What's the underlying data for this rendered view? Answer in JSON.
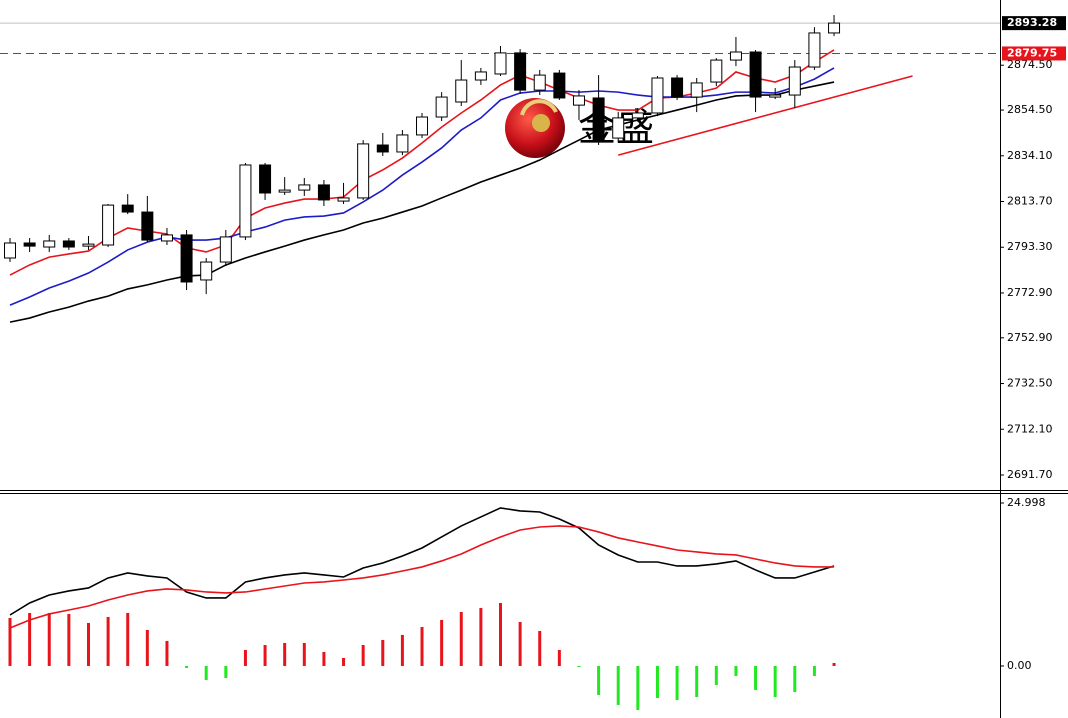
{
  "chart_data": [
    {
      "type": "candlestick",
      "open": [
        2788.5,
        2795.2,
        2793.4,
        2796.1,
        2793.8,
        2794.3,
        2812.1,
        2809.0,
        2796.1,
        2798.8,
        2778.7,
        2786.7,
        2797.9,
        2830.0,
        2817.9,
        2818.8,
        2821.1,
        2813.9,
        2815.3,
        2838.9,
        2835.8,
        2843.4,
        2851.4,
        2858.1,
        2867.9,
        2870.6,
        2880.0,
        2863.4,
        2871.0,
        2856.7,
        2859.9,
        2842.0,
        2851.0,
        2853.2,
        2868.8,
        2860.3,
        2867.0,
        2876.8,
        2880.4,
        2860.3,
        2861.2,
        2873.7,
        2888.9
      ],
      "high": [
        2797.4,
        2797.4,
        2798.8,
        2797.4,
        2798.3,
        2812.6,
        2817.0,
        2816.2,
        2801.9,
        2801.0,
        2788.5,
        2801.0,
        2830.9,
        2830.9,
        2824.6,
        2824.2,
        2823.3,
        2822.0,
        2841.1,
        2844.3,
        2845.6,
        2853.2,
        2862.5,
        2876.8,
        2873.3,
        2883.1,
        2881.7,
        2872.4,
        2872.4,
        2863.4,
        2870.1,
        2853.6,
        2855.4,
        2869.7,
        2870.1,
        2868.8,
        2877.7,
        2887.1,
        2881.3,
        2864.3,
        2876.8,
        2891.5,
        2896.9
      ],
      "low": [
        2786.7,
        2791.2,
        2791.2,
        2792.1,
        2792.1,
        2793.4,
        2808.1,
        2795.6,
        2794.3,
        2774.2,
        2772.4,
        2784.9,
        2796.5,
        2814.4,
        2816.6,
        2816.2,
        2811.7,
        2812.6,
        2814.4,
        2834.0,
        2834.4,
        2842.0,
        2849.6,
        2856.3,
        2865.7,
        2869.7,
        2861.7,
        2861.2,
        2859.0,
        2850.1,
        2838.9,
        2840.2,
        2849.2,
        2851.8,
        2859.0,
        2853.6,
        2865.2,
        2874.1,
        2853.6,
        2859.4,
        2855.4,
        2872.4,
        2887.5
      ],
      "close": [
        2795.2,
        2793.8,
        2796.1,
        2793.4,
        2794.7,
        2812.1,
        2809.0,
        2796.5,
        2798.8,
        2777.8,
        2786.7,
        2797.9,
        2830.0,
        2817.5,
        2818.8,
        2821.1,
        2814.4,
        2815.3,
        2839.4,
        2835.8,
        2843.4,
        2851.4,
        2860.3,
        2867.9,
        2871.5,
        2880.0,
        2863.4,
        2870.1,
        2859.9,
        2860.8,
        2841.1,
        2851.0,
        2853.2,
        2868.8,
        2860.3,
        2866.6,
        2876.8,
        2880.4,
        2860.3,
        2861.2,
        2873.7,
        2888.9,
        2893.3
      ],
      "up_color": "#ffffff",
      "down_color": "#000000",
      "wick_color": "#000000",
      "series": [
        {
          "color": "#e8141c",
          "values": [
            2780.9,
            2785.4,
            2788.9,
            2790.3,
            2791.6,
            2797.4,
            2801.9,
            2800.5,
            2799.2,
            2793.0,
            2791.2,
            2794.3,
            2806.3,
            2810.8,
            2813.0,
            2814.8,
            2814.8,
            2815.7,
            2823.3,
            2827.8,
            2833.1,
            2839.8,
            2846.9,
            2853.2,
            2859.0,
            2865.7,
            2870.1,
            2867.0,
            2863.4,
            2859.9,
            2856.7,
            2854.5,
            2854.5,
            2859.9,
            2860.3,
            2862.1,
            2864.3,
            2871.5,
            2868.8,
            2867.0,
            2870.1,
            2875.9,
            2881.3
          ]
        },
        {
          "color": "#1c1cc8",
          "values": [
            2767.5,
            2771.1,
            2775.1,
            2778.2,
            2781.8,
            2786.7,
            2792.1,
            2795.6,
            2797.9,
            2796.5,
            2796.5,
            2797.4,
            2800.1,
            2802.3,
            2805.4,
            2806.8,
            2807.2,
            2808.6,
            2813.5,
            2818.8,
            2825.5,
            2831.3,
            2837.6,
            2845.6,
            2851.0,
            2859.0,
            2862.1,
            2863.0,
            2863.0,
            2862.5,
            2863.0,
            2862.5,
            2861.2,
            2860.3,
            2860.3,
            2860.3,
            2861.2,
            2862.5,
            2862.5,
            2862.1,
            2864.8,
            2868.3,
            2873.3
          ]
        },
        {
          "color": "#000000",
          "values": [
            2759.9,
            2761.7,
            2764.4,
            2766.6,
            2769.3,
            2771.5,
            2774.7,
            2776.5,
            2778.7,
            2780.5,
            2780.9,
            2785.4,
            2788.5,
            2791.2,
            2793.8,
            2796.5,
            2798.8,
            2801.0,
            2804.1,
            2806.3,
            2809.0,
            2811.7,
            2815.3,
            2818.8,
            2822.4,
            2825.5,
            2828.6,
            2832.2,
            2836.7,
            2841.1,
            2845.6,
            2847.8,
            2850.1,
            2852.3,
            2854.5,
            2856.7,
            2859.0,
            2860.8,
            2861.2,
            2861.2,
            2863.4,
            2865.2,
            2867.0
          ]
        }
      ],
      "price_lines": [
        {
          "value": 2893.28,
          "color": "#c0c0c0",
          "style": "solid",
          "tag_color": "#000000"
        },
        {
          "value": 2879.75,
          "color": "#e8141c",
          "style": "dashed",
          "tag_color": "#e8141c"
        }
      ],
      "trendline": {
        "color": "#e8141c",
        "points": [
          [
            31,
            2834.4
          ],
          [
            46,
            2869.7
          ]
        ]
      },
      "watermark": "金盛",
      "ylim": [
        2685.0,
        2903.6
      ],
      "yticks": [
        {
          "value": 2874.5,
          "label": "2874.50"
        },
        {
          "value": 2854.5,
          "label": "2854.50"
        },
        {
          "value": 2834.1,
          "label": "2834.10"
        },
        {
          "value": 2813.7,
          "label": "2813.70"
        },
        {
          "value": 2793.3,
          "label": "2793.30"
        },
        {
          "value": 2772.9,
          "label": "2772.90"
        },
        {
          "value": 2752.9,
          "label": "2752.90"
        },
        {
          "value": 2732.5,
          "label": "2732.50"
        },
        {
          "value": 2712.1,
          "label": "2712.10"
        },
        {
          "value": 2691.7,
          "label": "2691.70"
        }
      ]
    },
    {
      "type": "macd",
      "histogram": {
        "up_color": "#e8141c",
        "down_color": "#22e822",
        "values": [
          7.36,
          8.13,
          8.13,
          7.98,
          6.6,
          7.52,
          8.13,
          5.52,
          3.84,
          -0.31,
          -2.15,
          -1.84,
          2.45,
          3.22,
          3.53,
          3.53,
          2.15,
          1.23,
          3.22,
          3.99,
          4.76,
          5.98,
          7.06,
          8.28,
          8.9,
          9.66,
          6.75,
          5.37,
          2.45,
          -0.15,
          -4.45,
          -5.98,
          -6.75,
          -4.91,
          -5.22,
          -4.76,
          -2.91,
          -1.53,
          -3.68,
          -4.76,
          -3.99,
          -1.53,
          0.46
        ]
      },
      "series": [
        {
          "color": "#000000",
          "values": [
            7.82,
            9.66,
            10.89,
            11.51,
            11.97,
            13.5,
            14.27,
            13.81,
            13.5,
            11.35,
            10.43,
            10.43,
            12.89,
            13.5,
            13.96,
            14.27,
            13.96,
            13.65,
            15.03,
            15.8,
            16.87,
            18.1,
            19.79,
            21.48,
            22.86,
            24.24,
            23.78,
            23.62,
            22.55,
            21.17,
            18.56,
            17.03,
            15.95,
            15.95,
            15.34,
            15.34,
            15.65,
            16.11,
            14.73,
            13.5,
            13.5,
            14.42,
            15.34
          ]
        },
        {
          "color": "#e8141c",
          "values": [
            5.83,
            7.06,
            7.98,
            8.59,
            9.2,
            10.12,
            10.89,
            11.51,
            11.81,
            11.66,
            11.35,
            11.2,
            11.35,
            11.81,
            12.27,
            12.73,
            12.89,
            13.19,
            13.5,
            13.96,
            14.57,
            15.19,
            16.11,
            17.18,
            18.56,
            19.79,
            20.86,
            21.32,
            21.48,
            21.32,
            20.56,
            19.64,
            19.02,
            18.41,
            17.79,
            17.49,
            17.18,
            17.03,
            16.41,
            15.8,
            15.34,
            15.19,
            15.19
          ]
        }
      ],
      "ylim": [
        -7.98,
        26.38
      ],
      "yticks": [
        24.998,
        {
          "value": 0,
          "label": "0.00"
        }
      ]
    }
  ]
}
